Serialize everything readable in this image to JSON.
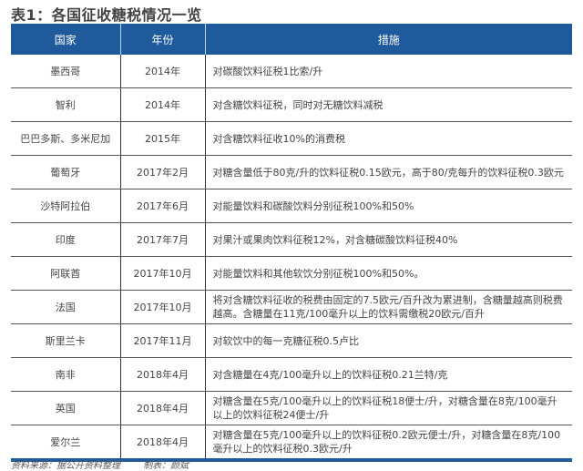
{
  "title": "表1：各国征收糖税情况一览",
  "headers": [
    "国家",
    "年份",
    "措施"
  ],
  "rows": [
    {
      "country": "墨西哥",
      "year": "2014年",
      "measure": "对碳酸饮料征税1比索/升"
    },
    {
      "country": "智利",
      "year": "2014年",
      "measure": "对含糖饮料征税，同时对无糖饮料减税"
    },
    {
      "country": "巴巴多斯、多米尼加",
      "year": "2015年",
      "measure": "对含糖饮料征收10%的消费税"
    },
    {
      "country": "葡萄牙",
      "year": "2017年2月",
      "measure": "对糖含量低于80克/升的饮料征税0.15欧元，高于80/克每升的饮料征税0.3欧元"
    },
    {
      "country": "沙特阿拉伯",
      "year": "2017年6月",
      "measure": "对能量饮料和碳酸饮料分别征税100%和50%"
    },
    {
      "country": "印度",
      "year": "2017年7月",
      "measure": "对果汁或果肉饮料征税12%，对含糖碳酸饮料征税40%"
    },
    {
      "country": "阿联酋",
      "year": "2017年10月",
      "measure": "对能量饮料和其他软饮分别征税100%和50%。"
    },
    {
      "country": "法国",
      "year": "2017年10月",
      "measure": "将对含糖饮料征收的税费由固定的7.5欧元/百升改为累进制，含糖量越高则税费越高。含糖量在11克/100毫升以上的饮料需缴税20欧元/百升"
    },
    {
      "country": "斯里兰卡",
      "year": "2017年11月",
      "measure": "对软饮中的每一克糖征税0.5卢比"
    },
    {
      "country": "南非",
      "year": "2018年4月",
      "measure": "对含糖量在4克/100毫升以上的饮料征税0.21兰特/克"
    },
    {
      "country": "英国",
      "year": "2018年4月",
      "measure": "对糖含量在5克/100毫升以上的饮料征税18便士/升，对糖含量在8克/100毫升以上的饮料征税24便士/升"
    },
    {
      "country": "爱尔兰",
      "year": "2018年4月",
      "measure": "对糖含量在5克/100毫升以上的饮料征税0.2欧元便士/升，对糖含量在8克/100毫升以上的饮料征税0.3欧元/升"
    }
  ],
  "footer": {
    "source": "资料来源：据公开资料整理",
    "maker": "制表：颜斌"
  },
  "colors": {
    "header_bg": "#1e5a9c"
  }
}
